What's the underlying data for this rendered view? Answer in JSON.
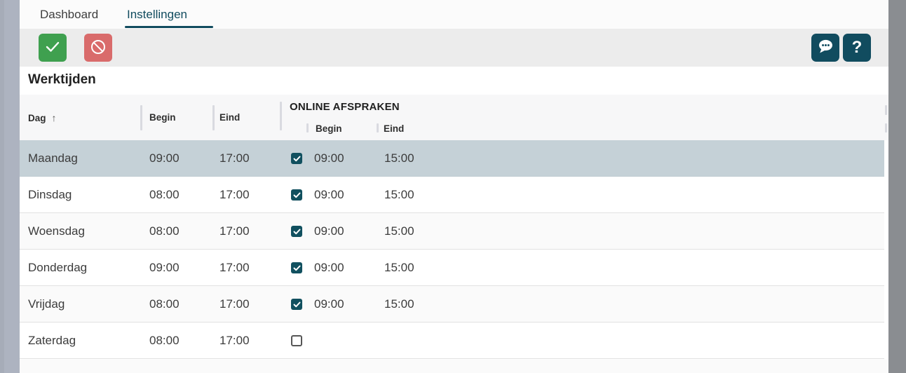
{
  "tabs": {
    "dashboard": {
      "label": "Dashboard",
      "active": false
    },
    "settings": {
      "label": "Instellingen",
      "active": true
    }
  },
  "toolbar": {
    "confirm_icon": "check-icon",
    "cancel_icon": "ban-icon",
    "chat_icon": "speech-bubble-icon",
    "help_label": "?"
  },
  "page": {
    "title": "Werktijden"
  },
  "table": {
    "columns": {
      "day": "Dag",
      "sort_arrow": "↑",
      "begin": "Begin",
      "eind": "Eind",
      "online_group": "ONLINE AFSPRAKEN",
      "online_begin": "Begin",
      "online_eind": "Eind"
    },
    "rows": [
      {
        "day": "Maandag",
        "begin": "09:00",
        "eind": "17:00",
        "online": true,
        "online_begin": "09:00",
        "online_eind": "15:00",
        "selected": true,
        "stripe": false
      },
      {
        "day": "Dinsdag",
        "begin": "08:00",
        "eind": "17:00",
        "online": true,
        "online_begin": "09:00",
        "online_eind": "15:00",
        "selected": false,
        "stripe": false
      },
      {
        "day": "Woensdag",
        "begin": "08:00",
        "eind": "17:00",
        "online": true,
        "online_begin": "09:00",
        "online_eind": "15:00",
        "selected": false,
        "stripe": true
      },
      {
        "day": "Donderdag",
        "begin": "09:00",
        "eind": "17:00",
        "online": true,
        "online_begin": "09:00",
        "online_eind": "15:00",
        "selected": false,
        "stripe": false
      },
      {
        "day": "Vrijdag",
        "begin": "08:00",
        "eind": "17:00",
        "online": true,
        "online_begin": "09:00",
        "online_eind": "15:00",
        "selected": false,
        "stripe": true
      },
      {
        "day": "Zaterdag",
        "begin": "08:00",
        "eind": "17:00",
        "online": false,
        "online_begin": "",
        "online_eind": "",
        "selected": false,
        "stripe": false
      }
    ]
  },
  "colors": {
    "accent_teal": "#114c5f",
    "confirm_green": "#3fa04f",
    "cancel_red": "#d96b6b",
    "selected_row": "#c5d1d7",
    "left_strip": "#adb3c0",
    "right_strip": "#8a8d91",
    "toolbar_bg": "#ececec",
    "header_bg": "#f7f7f8"
  }
}
